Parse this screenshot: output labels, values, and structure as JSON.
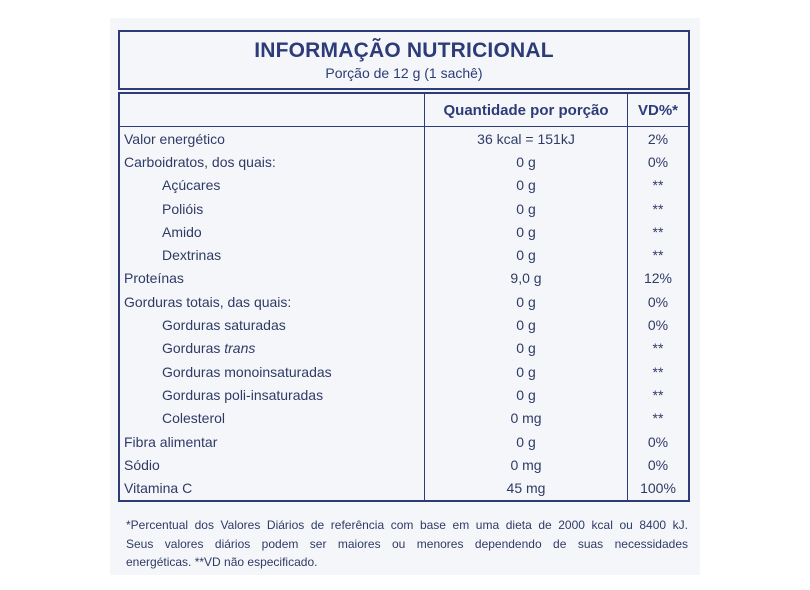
{
  "header": {
    "title": "INFORMAÇÃO NUTRICIONAL",
    "subtitle": "Porção de 12 g (1 sachê)"
  },
  "table": {
    "columns": [
      "",
      "Quantidade por porção",
      "VD%*"
    ],
    "rows": [
      {
        "label": "Valor energético",
        "indent": 0,
        "amount": "36 kcal = 151kJ",
        "vd": "2%"
      },
      {
        "label": "Carboidratos, dos quais:",
        "indent": 0,
        "amount": "0 g",
        "vd": "0%"
      },
      {
        "label": "Açúcares",
        "indent": 1,
        "amount": "0 g",
        "vd": "**"
      },
      {
        "label": "Polióis",
        "indent": 1,
        "amount": "0 g",
        "vd": "**"
      },
      {
        "label": "Amido",
        "indent": 1,
        "amount": "0 g",
        "vd": "**"
      },
      {
        "label": "Dextrinas",
        "indent": 1,
        "amount": "0 g",
        "vd": "**"
      },
      {
        "label": "Proteínas",
        "indent": 0,
        "amount": "9,0 g",
        "vd": "12%"
      },
      {
        "label": "Gorduras totais, das quais:",
        "indent": 0,
        "amount": "0 g",
        "vd": "0%"
      },
      {
        "label": "Gorduras saturadas",
        "indent": 1,
        "amount": "0 g",
        "vd": "0%"
      },
      {
        "label": "Gorduras",
        "label_italic": "trans",
        "indent": 1,
        "amount": "0 g",
        "vd": "**"
      },
      {
        "label": "Gorduras monoinsaturadas",
        "indent": 1,
        "amount": "0 g",
        "vd": "**"
      },
      {
        "label": "Gorduras poli-insaturadas",
        "indent": 1,
        "amount": "0 g",
        "vd": "**"
      },
      {
        "label": "Colesterol",
        "indent": 1,
        "amount": "0 mg",
        "vd": "**"
      },
      {
        "label": "Fibra alimentar",
        "indent": 0,
        "amount": "0 g",
        "vd": "0%"
      },
      {
        "label": "Sódio",
        "indent": 0,
        "amount": "0 mg",
        "vd": "0%"
      },
      {
        "label": "Vitamina C",
        "indent": 0,
        "amount": "45 mg",
        "vd": "100%"
      }
    ]
  },
  "footnote": [
    "*Percentual dos Valores Diários de referência com base em uma dieta de 2000 kcal ou 8400 kJ.",
    "Seus valores diários podem ser maiores ou menores dependendo de suas necessidades",
    "energéticas. **VD não especificado."
  ]
}
